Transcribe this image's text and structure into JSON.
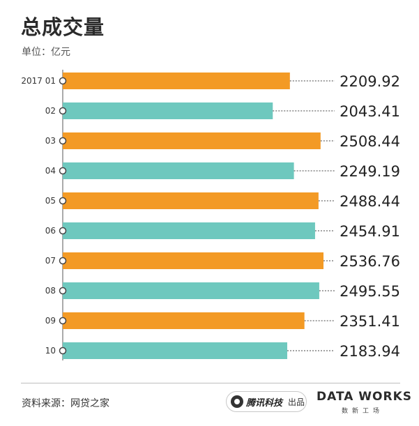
{
  "title": "总成交量",
  "unit": "单位：亿元",
  "chart_data": {
    "type": "bar",
    "orientation": "horizontal",
    "categories": [
      "2017 01",
      "02",
      "03",
      "04",
      "05",
      "06",
      "07",
      "08",
      "09",
      "10"
    ],
    "values": [
      2209.92,
      2043.41,
      2508.44,
      2249.19,
      2488.44,
      2454.91,
      2536.76,
      2495.55,
      2351.41,
      2183.94
    ],
    "value_labels": [
      "2209.92",
      "2043.41",
      "2508.44",
      "2249.19",
      "2488.44",
      "2454.91",
      "2536.76",
      "2495.55",
      "2351.41",
      "2183.94"
    ],
    "colors": [
      "#f39a25",
      "#6ec8be"
    ],
    "grid": false
  },
  "footer": {
    "source": "资料来源：网贷之家",
    "brand": "腾讯科技",
    "brand_suffix": "出品",
    "dataworks": "DATA WORKS",
    "dataworks_sub": "数新工场"
  }
}
